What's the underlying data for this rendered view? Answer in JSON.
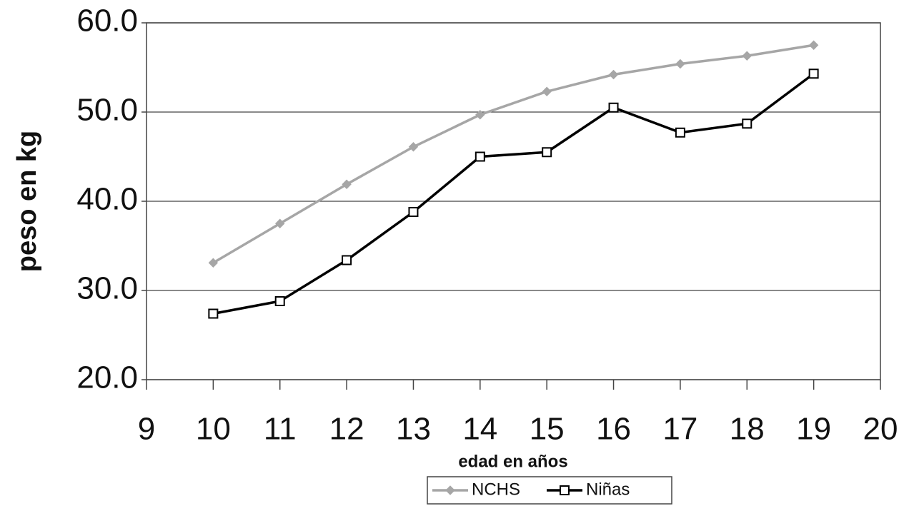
{
  "chart_data": {
    "type": "line",
    "x_label": "edad en años",
    "y_label": "peso en kg",
    "x": [
      10,
      11,
      12,
      13,
      14,
      15,
      16,
      17,
      18,
      19
    ],
    "series": [
      {
        "name": "NCHS",
        "color": "#a6a6a6",
        "marker": "diamond",
        "values": [
          33.1,
          37.5,
          41.9,
          46.1,
          49.7,
          52.3,
          54.2,
          55.4,
          56.3,
          57.5
        ]
      },
      {
        "name": "Niñas",
        "color": "#000000",
        "marker": "square",
        "values": [
          27.4,
          28.8,
          33.4,
          38.8,
          45.0,
          45.5,
          50.5,
          47.7,
          48.7,
          54.3
        ]
      }
    ],
    "xlim": [
      9,
      20
    ],
    "xticks": [
      9,
      10,
      11,
      12,
      13,
      14,
      15,
      16,
      17,
      18,
      19,
      20
    ],
    "ylim": [
      20,
      60
    ],
    "yticks": [
      {
        "value": 20,
        "label": "20.0"
      },
      {
        "value": 30,
        "label": "30.0"
      },
      {
        "value": 40,
        "label": "40.0"
      },
      {
        "value": 50,
        "label": "50.0"
      },
      {
        "value": 60,
        "label": "60.0"
      }
    ],
    "grid": true,
    "legend": "bottom"
  }
}
